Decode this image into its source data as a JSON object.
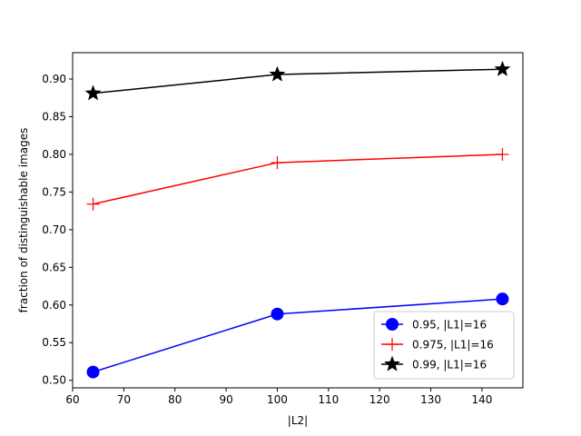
{
  "chart_data": {
    "type": "line",
    "title": "",
    "xlabel": "|L2|",
    "ylabel": "fraction of distinguishable images",
    "xlim": [
      60,
      148
    ],
    "ylim": [
      0.49,
      0.935
    ],
    "xticks": [
      60,
      70,
      80,
      90,
      100,
      110,
      120,
      130,
      140
    ],
    "yticks": [
      0.5,
      0.55,
      0.6,
      0.65,
      0.7,
      0.75,
      0.8,
      0.85,
      0.9
    ],
    "grid": false,
    "legend_position": "lower-right",
    "x": [
      64,
      100,
      144
    ],
    "series": [
      {
        "name": "0.95, |L1|=16",
        "color": "#0000ff",
        "marker": "circle",
        "values": [
          0.511,
          0.588,
          0.608
        ]
      },
      {
        "name": "0.975, |L1|=16",
        "color": "#ff0000",
        "marker": "plus",
        "values": [
          0.734,
          0.789,
          0.8
        ]
      },
      {
        "name": "0.99, |L1|=16",
        "color": "#000000",
        "marker": "star",
        "values": [
          0.881,
          0.906,
          0.913
        ]
      }
    ]
  }
}
